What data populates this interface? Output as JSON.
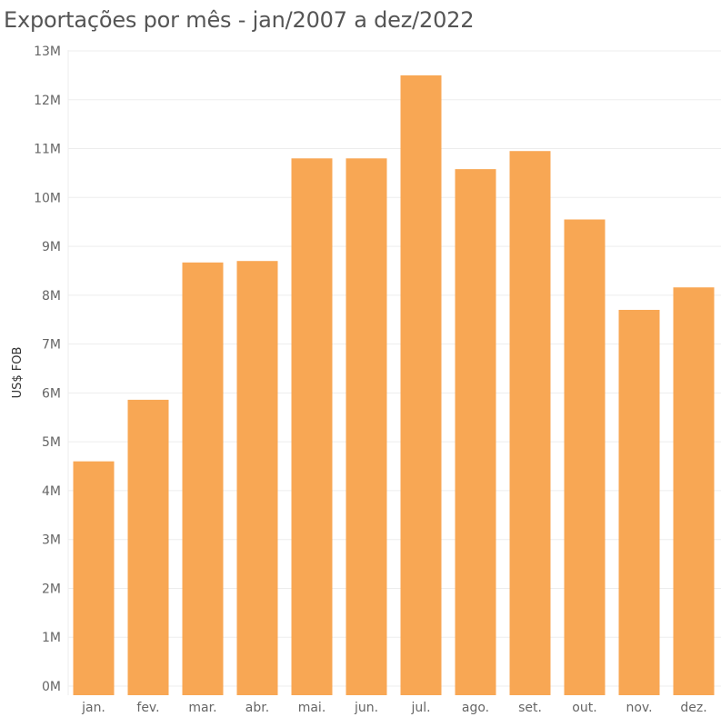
{
  "chart_data": {
    "type": "bar",
    "title": "Exportações por mês - jan/2007 a dez/2022",
    "xlabel": "",
    "ylabel": "US$ FOB",
    "categories": [
      "jan.",
      "fev.",
      "mar.",
      "abr.",
      "mai.",
      "jun.",
      "jul.",
      "ago.",
      "set.",
      "out.",
      "nov.",
      "dez."
    ],
    "values": [
      4600000,
      5860000,
      8670000,
      8700000,
      10800000,
      10800000,
      12500000,
      10580000,
      10950000,
      9550000,
      7700000,
      8160000
    ],
    "ylim": [
      0,
      13000000
    ],
    "yticks": [
      {
        "value": 0,
        "label": "0M"
      },
      {
        "value": 1000000,
        "label": "1M"
      },
      {
        "value": 2000000,
        "label": "2M"
      },
      {
        "value": 3000000,
        "label": "3M"
      },
      {
        "value": 4000000,
        "label": "4M"
      },
      {
        "value": 5000000,
        "label": "5M"
      },
      {
        "value": 6000000,
        "label": "6M"
      },
      {
        "value": 7000000,
        "label": "7M"
      },
      {
        "value": 8000000,
        "label": "8M"
      },
      {
        "value": 9000000,
        "label": "9M"
      },
      {
        "value": 10000000,
        "label": "10M"
      },
      {
        "value": 11000000,
        "label": "11M"
      },
      {
        "value": 12000000,
        "label": "12M"
      },
      {
        "value": 13000000,
        "label": "13M"
      }
    ],
    "grid": true,
    "bar_color": "#F8A754",
    "grid_color": "#EDEDED"
  }
}
